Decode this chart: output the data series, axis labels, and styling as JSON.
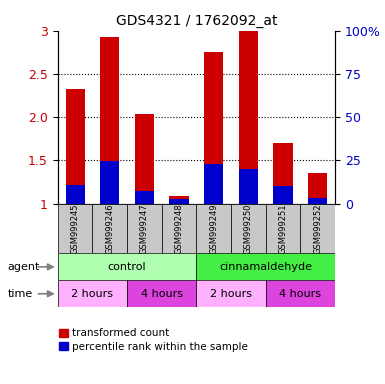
{
  "title": "GDS4321 / 1762092_at",
  "samples": [
    "GSM999245",
    "GSM999246",
    "GSM999247",
    "GSM999248",
    "GSM999249",
    "GSM999250",
    "GSM999251",
    "GSM999252"
  ],
  "red_values": [
    2.33,
    2.93,
    2.04,
    1.09,
    2.75,
    3.0,
    1.7,
    1.35
  ],
  "blue_values": [
    1.22,
    1.49,
    1.14,
    1.05,
    1.46,
    1.4,
    1.2,
    1.06
  ],
  "bar_bottom": 1.0,
  "ylim": [
    1.0,
    3.0
  ],
  "yticks_left": [
    1.0,
    1.5,
    2.0,
    2.5,
    3.0
  ],
  "yticks_right": [
    0,
    25,
    50,
    75,
    100
  ],
  "red_color": "#CC0000",
  "blue_color": "#0000CC",
  "bar_width": 0.55,
  "agent_labels": [
    "control",
    "cinnamaldehyde"
  ],
  "agent_colors": [
    "#B0FFB0",
    "#44EE44"
  ],
  "time_colors": [
    "#FFB0FF",
    "#DD44DD"
  ],
  "legend_red": "transformed count",
  "legend_blue": "percentile rank within the sample",
  "bg_color": "white",
  "sample_bg_color": "#C8C8C8",
  "grid_linestyle": ":",
  "grid_linewidth": 0.8
}
